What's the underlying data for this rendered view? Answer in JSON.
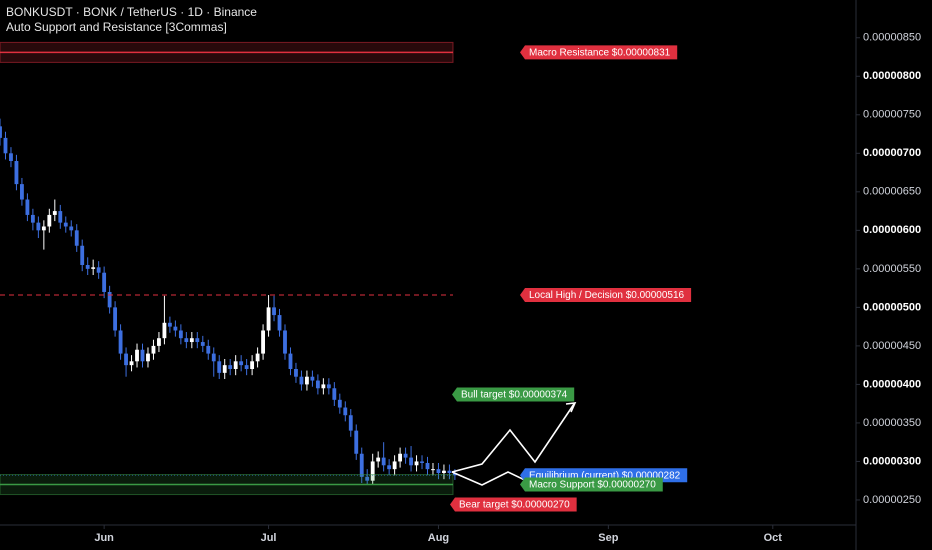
{
  "chart_data": {
    "type": "candlestick",
    "title": "BONKUSDT · BONK / TetherUS · 1D · Binance",
    "subtitle": "Auto Support and Resistance [3Commas]",
    "x": [
      0,
      1,
      2,
      3,
      4,
      5,
      6,
      7,
      8,
      9,
      10,
      11,
      12,
      13,
      14,
      15,
      16,
      17,
      18,
      19,
      20,
      21,
      22,
      23,
      24,
      25,
      26,
      27,
      28,
      29,
      30,
      31,
      32,
      33,
      34,
      35,
      36,
      37,
      38,
      39,
      40,
      41,
      42,
      43,
      44,
      45,
      46,
      47,
      48,
      49,
      50,
      51,
      52,
      53,
      54,
      55,
      56,
      57,
      58,
      59,
      60,
      61,
      62,
      63,
      64,
      65,
      66,
      67,
      68,
      69,
      70,
      71,
      72,
      73,
      74,
      75,
      76,
      77,
      78,
      79,
      80,
      81,
      82,
      83
    ],
    "open": [
      7.35e-06,
      7.2e-06,
      7e-06,
      6.9e-06,
      6.6e-06,
      6.4e-06,
      6.2e-06,
      6.1e-06,
      6e-06,
      6.05e-06,
      6.2e-06,
      6.25e-06,
      6.1e-06,
      6.05e-06,
      6e-06,
      5.8e-06,
      5.55e-06,
      5.5e-06,
      5.52e-06,
      5.45e-06,
      5.2e-06,
      5e-06,
      4.7e-06,
      4.4e-06,
      4.25e-06,
      4.3e-06,
      4.45e-06,
      4.3e-06,
      4.4e-06,
      4.5e-06,
      4.6e-06,
      4.8e-06,
      4.75e-06,
      4.7e-06,
      4.6e-06,
      4.55e-06,
      4.6e-06,
      4.55e-06,
      4.5e-06,
      4.4e-06,
      4.3e-06,
      4.15e-06,
      4.25e-06,
      4.2e-06,
      4.3e-06,
      4.25e-06,
      4.2e-06,
      4.3e-06,
      4.4e-06,
      4.7e-06,
      5e-06,
      4.9e-06,
      4.7e-06,
      4.4e-06,
      4.2e-06,
      4.1e-06,
      4e-06,
      4.1e-06,
      4.05e-06,
      3.95e-06,
      4e-06,
      3.95e-06,
      3.8e-06,
      3.7e-06,
      3.6e-06,
      3.4e-06,
      3.1e-06,
      2.8e-06,
      2.75e-06,
      3e-06,
      3.05e-06,
      2.95e-06,
      2.9e-06,
      3e-06,
      3.1e-06,
      3.05e-06,
      2.95e-06,
      3e-06,
      2.98e-06,
      2.9e-06,
      2.9e-06,
      2.85e-06,
      2.88e-06,
      2.85e-06
    ],
    "high": [
      7.45e-06,
      7.28e-06,
      7.08e-06,
      6.98e-06,
      6.68e-06,
      6.48e-06,
      6.28e-06,
      6.18e-06,
      6.13e-06,
      6.28e-06,
      6.4e-06,
      6.33e-06,
      6.18e-06,
      6.13e-06,
      6.08e-06,
      5.88e-06,
      5.65e-06,
      5.62e-06,
      5.6e-06,
      5.53e-06,
      5.28e-06,
      5.08e-06,
      4.78e-06,
      4.48e-06,
      4.38e-06,
      4.53e-06,
      4.53e-06,
      4.48e-06,
      4.58e-06,
      4.68e-06,
      5.15e-06,
      4.88e-06,
      4.83e-06,
      4.78e-06,
      4.68e-06,
      4.68e-06,
      4.68e-06,
      4.63e-06,
      4.58e-06,
      4.48e-06,
      4.38e-06,
      4.33e-06,
      4.33e-06,
      4.38e-06,
      4.38e-06,
      4.33e-06,
      4.38e-06,
      4.48e-06,
      4.78e-06,
      5.16e-06,
      5.15e-06,
      4.98e-06,
      4.78e-06,
      4.48e-06,
      4.28e-06,
      4.18e-06,
      4.18e-06,
      4.18e-06,
      4.13e-06,
      4.08e-06,
      4.08e-06,
      4.03e-06,
      3.88e-06,
      3.78e-06,
      3.68e-06,
      3.48e-06,
      3.18e-06,
      2.9e-06,
      3.1e-06,
      3.13e-06,
      3.25e-06,
      3.03e-06,
      3.08e-06,
      3.18e-06,
      3.18e-06,
      3.2e-06,
      3.08e-06,
      3.08e-06,
      3.06e-06,
      2.98e-06,
      2.98e-06,
      2.96e-06,
      2.96e-06,
      2.9e-06
    ],
    "low": [
      7.1e-06,
      6.92e-06,
      6.82e-06,
      6.52e-06,
      6.32e-06,
      6.12e-06,
      6e-06,
      5.9e-06,
      5.75e-06,
      5.97e-06,
      6.12e-06,
      6.02e-06,
      5.97e-06,
      5.92e-06,
      5.72e-06,
      5.47e-06,
      5.42e-06,
      5.42e-06,
      5.37e-06,
      5.12e-06,
      4.92e-06,
      4.62e-06,
      4.32e-06,
      4.1e-06,
      4.17e-06,
      4.22e-06,
      4.22e-06,
      4.22e-06,
      4.32e-06,
      4.42e-06,
      4.52e-06,
      4.67e-06,
      4.62e-06,
      4.52e-06,
      4.47e-06,
      4.47e-06,
      4.47e-06,
      4.42e-06,
      4.32e-06,
      4.1e-06,
      4.07e-06,
      4.07e-06,
      4.12e-06,
      4.12e-06,
      4.17e-06,
      4.12e-06,
      4.12e-06,
      4.22e-06,
      4.32e-06,
      4.62e-06,
      4.82e-06,
      4.62e-06,
      4.32e-06,
      4.12e-06,
      4.02e-06,
      3.92e-06,
      3.92e-06,
      3.97e-06,
      3.87e-06,
      3.87e-06,
      3.87e-06,
      3.72e-06,
      3.62e-06,
      3.52e-06,
      3.32e-06,
      3.02e-06,
      2.72e-06,
      2.7e-06,
      2.7e-06,
      2.92e-06,
      2.87e-06,
      2.82e-06,
      2.82e-06,
      2.92e-06,
      2.97e-06,
      2.87e-06,
      2.87e-06,
      2.9e-06,
      2.82e-06,
      2.82e-06,
      2.77e-06,
      2.77e-06,
      2.77e-06,
      2.76e-06
    ],
    "close": [
      7.2e-06,
      7e-06,
      6.9e-06,
      6.6e-06,
      6.4e-06,
      6.2e-06,
      6.1e-06,
      6e-06,
      6.05e-06,
      6.2e-06,
      6.25e-06,
      6.1e-06,
      6.05e-06,
      6e-06,
      5.8e-06,
      5.55e-06,
      5.5e-06,
      5.52e-06,
      5.45e-06,
      5.2e-06,
      5e-06,
      4.7e-06,
      4.4e-06,
      4.25e-06,
      4.3e-06,
      4.45e-06,
      4.3e-06,
      4.4e-06,
      4.5e-06,
      4.6e-06,
      4.8e-06,
      4.75e-06,
      4.7e-06,
      4.6e-06,
      4.55e-06,
      4.6e-06,
      4.55e-06,
      4.5e-06,
      4.4e-06,
      4.3e-06,
      4.15e-06,
      4.25e-06,
      4.2e-06,
      4.3e-06,
      4.25e-06,
      4.2e-06,
      4.3e-06,
      4.4e-06,
      4.7e-06,
      5e-06,
      4.9e-06,
      4.7e-06,
      4.4e-06,
      4.2e-06,
      4.1e-06,
      4e-06,
      4.1e-06,
      4.05e-06,
      3.95e-06,
      4e-06,
      3.95e-06,
      3.8e-06,
      3.7e-06,
      3.6e-06,
      3.4e-06,
      3.1e-06,
      2.8e-06,
      2.75e-06,
      3e-06,
      3.05e-06,
      2.95e-06,
      2.9e-06,
      3e-06,
      3.1e-06,
      3.05e-06,
      2.95e-06,
      3e-06,
      2.98e-06,
      2.9e-06,
      2.9e-06,
      2.85e-06,
      2.88e-06,
      2.85e-06,
      2.82e-06
    ],
    "up_color": "#ffffff",
    "down_color": "#3d6fe0",
    "xlim": [
      0,
      156
    ],
    "xticks": [
      {
        "value": 19,
        "label": "Jun"
      },
      {
        "value": 49,
        "label": "Jul"
      },
      {
        "value": 80,
        "label": "Aug"
      },
      {
        "value": 111,
        "label": "Sep"
      },
      {
        "value": 141,
        "label": "Oct"
      }
    ],
    "ylim": [
      2.175e-06,
      8.99e-06
    ],
    "yticks": [
      {
        "value": 8.5e-06,
        "label": "0.00000850"
      },
      {
        "value": 8e-06,
        "label": "0.00000800"
      },
      {
        "value": 7.5e-06,
        "label": "0.00000750"
      },
      {
        "value": 7e-06,
        "label": "0.00000700"
      },
      {
        "value": 6.5e-06,
        "label": "0.00000650"
      },
      {
        "value": 6e-06,
        "label": "0.00000600"
      },
      {
        "value": 5.5e-06,
        "label": "0.00000550"
      },
      {
        "value": 5e-06,
        "label": "0.00000500"
      },
      {
        "value": 4.5e-06,
        "label": "0.00000450"
      },
      {
        "value": 4e-06,
        "label": "0.00000400"
      },
      {
        "value": 3.5e-06,
        "label": "0.00000350"
      },
      {
        "value": 3e-06,
        "label": "0.00000300"
      },
      {
        "value": 2.5e-06,
        "label": "0.00000250"
      }
    ],
    "levels": [
      {
        "label": "Macro Resistance $0.00000831",
        "value": 8.31e-06,
        "color": "#e0303f"
      },
      {
        "label": "Local High / Decision $0.00000516",
        "value": 5.16e-06,
        "color": "#e0303f"
      },
      {
        "label": "Bull target $0.00000374",
        "value": 3.74e-06,
        "color": "#3a9a45"
      },
      {
        "label": "Equilibrium (current) $0.00000282",
        "value": 2.82e-06,
        "color": "#2f6fe8"
      },
      {
        "label": "Macro Support $0.00000270",
        "value": 2.7e-06,
        "color": "#3a9a45"
      },
      {
        "label": "Bear target $0.00000270",
        "value": 2.7e-06,
        "color": "#e0303f"
      }
    ]
  }
}
